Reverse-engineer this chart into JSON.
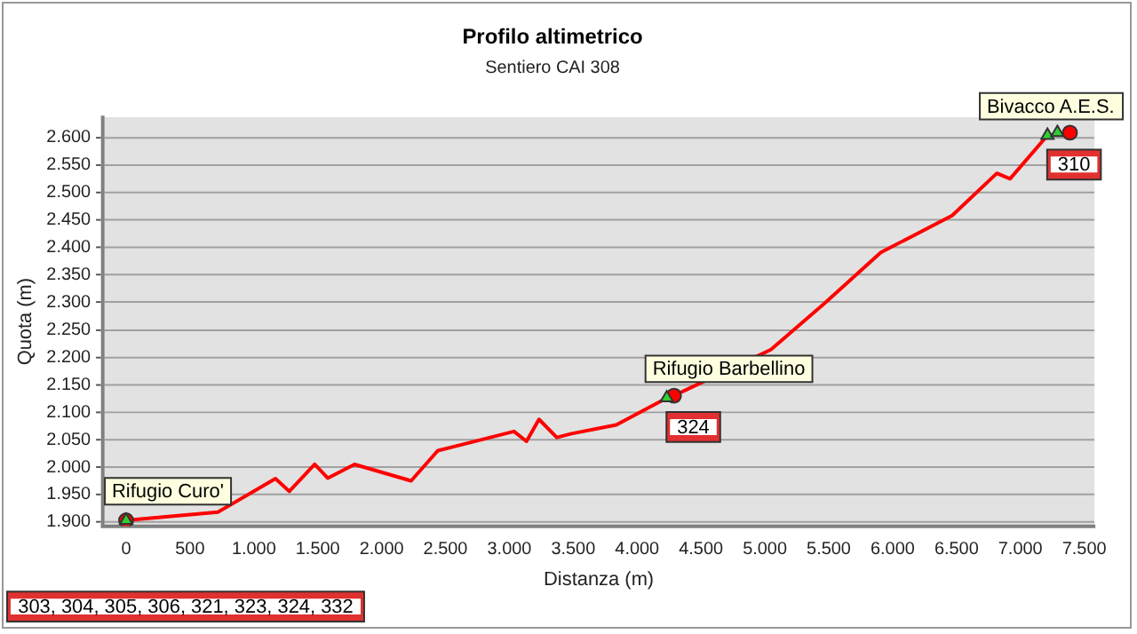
{
  "chart_data": {
    "type": "line",
    "title": "Profilo altimetrico",
    "subtitle": "Sentiero CAI 308",
    "xlabel": "Distanza (m)",
    "ylabel": "Quota (m)",
    "series": [
      {
        "color": "#ff0000",
        "x": [
          0,
          718,
          1169,
          1277,
          1476,
          1578,
          1788,
          2231,
          2440,
          3036,
          3134,
          3232,
          3371,
          3487,
          3837,
          4232,
          4288,
          5047,
          5466,
          5908,
          6466,
          6816,
          6919,
          7212,
          7388
        ],
        "values": [
          1903,
          1918,
          1979,
          1956,
          2005,
          1980,
          2005,
          1975,
          2030,
          2065,
          2047,
          2087,
          2054,
          2061,
          2077,
          2126,
          2130,
          2214,
          2298,
          2391,
          2458,
          2535,
          2525,
          2604,
          2609
        ]
      },
      {
        "type": "scatter",
        "color": "#33cc33",
        "marker": "triangle",
        "x": [
          0,
          4232,
          7212,
          7290
        ],
        "values": [
          1903,
          2126,
          2604,
          2609
        ]
      },
      {
        "type": "scatter",
        "color": "#ff0000",
        "marker": "circle",
        "x": [
          0,
          4288,
          7388
        ],
        "values": [
          1903,
          2130,
          2609
        ]
      }
    ],
    "xlim": [
      -180,
      7580
    ],
    "ylim": [
      1893,
      2637
    ],
    "xticks": [
      0,
      500,
      {
        "value": 1000,
        "label": "1.000"
      },
      {
        "value": 1500,
        "label": "1.500"
      },
      {
        "value": 2000,
        "label": "2.000"
      },
      {
        "value": 2500,
        "label": "2.500"
      },
      {
        "value": 3000,
        "label": "3.000"
      },
      {
        "value": 3500,
        "label": "3.500"
      },
      {
        "value": 4000,
        "label": "4.000"
      },
      {
        "value": 4500,
        "label": "4.500"
      },
      {
        "value": 5000,
        "label": "5.000"
      },
      {
        "value": 5500,
        "label": "5.500"
      },
      {
        "value": 6000,
        "label": "6.000"
      },
      {
        "value": 6500,
        "label": "6.500"
      },
      {
        "value": 7000,
        "label": "7.000"
      },
      {
        "value": 7500,
        "label": "7.500"
      }
    ],
    "yticks": [
      {
        "value": 1900,
        "label": "1.900"
      },
      {
        "value": 1950,
        "label": "1.950"
      },
      {
        "value": 2000,
        "label": "2.000"
      },
      {
        "value": 2050,
        "label": "2.050"
      },
      {
        "value": 2100,
        "label": "2.100"
      },
      {
        "value": 2150,
        "label": "2.150"
      },
      {
        "value": 2200,
        "label": "2.200"
      },
      {
        "value": 2250,
        "label": "2.250"
      },
      {
        "value": 2300,
        "label": "2.300"
      },
      {
        "value": 2350,
        "label": "2.350"
      },
      {
        "value": 2400,
        "label": "2.400"
      },
      {
        "value": 2450,
        "label": "2.450"
      },
      {
        "value": 2500,
        "label": "2.500"
      },
      {
        "value": 2550,
        "label": "2.550"
      },
      {
        "value": 2600,
        "label": "2.600"
      }
    ],
    "grid": "y",
    "legend": false,
    "line_style": "solid",
    "annotations": [
      {
        "text": "Rifugio Curo'",
        "x": 0,
        "y": 1903
      },
      {
        "text": "Rifugio Barbellino",
        "x": 4232,
        "y": 2126
      },
      {
        "text": "Bivacco A.E.S.",
        "x": 7212,
        "y": 2604
      },
      "303, 304, 305, 306, 321, 323, 324, 332",
      "324",
      "310"
    ]
  }
}
